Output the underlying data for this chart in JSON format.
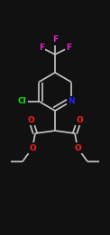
{
  "background_color": "#111111",
  "bond_color": "#c8c8c8",
  "bond_width": 1.2,
  "N_color": "#2020ff",
  "O_color": "#ff2020",
  "Cl_color": "#00ee00",
  "F_color": "#ee22cc",
  "figsize": [
    1.22,
    2.59
  ],
  "dpi": 100,
  "xlim": [
    0,
    12.2
  ],
  "ylim": [
    0,
    25.9
  ]
}
